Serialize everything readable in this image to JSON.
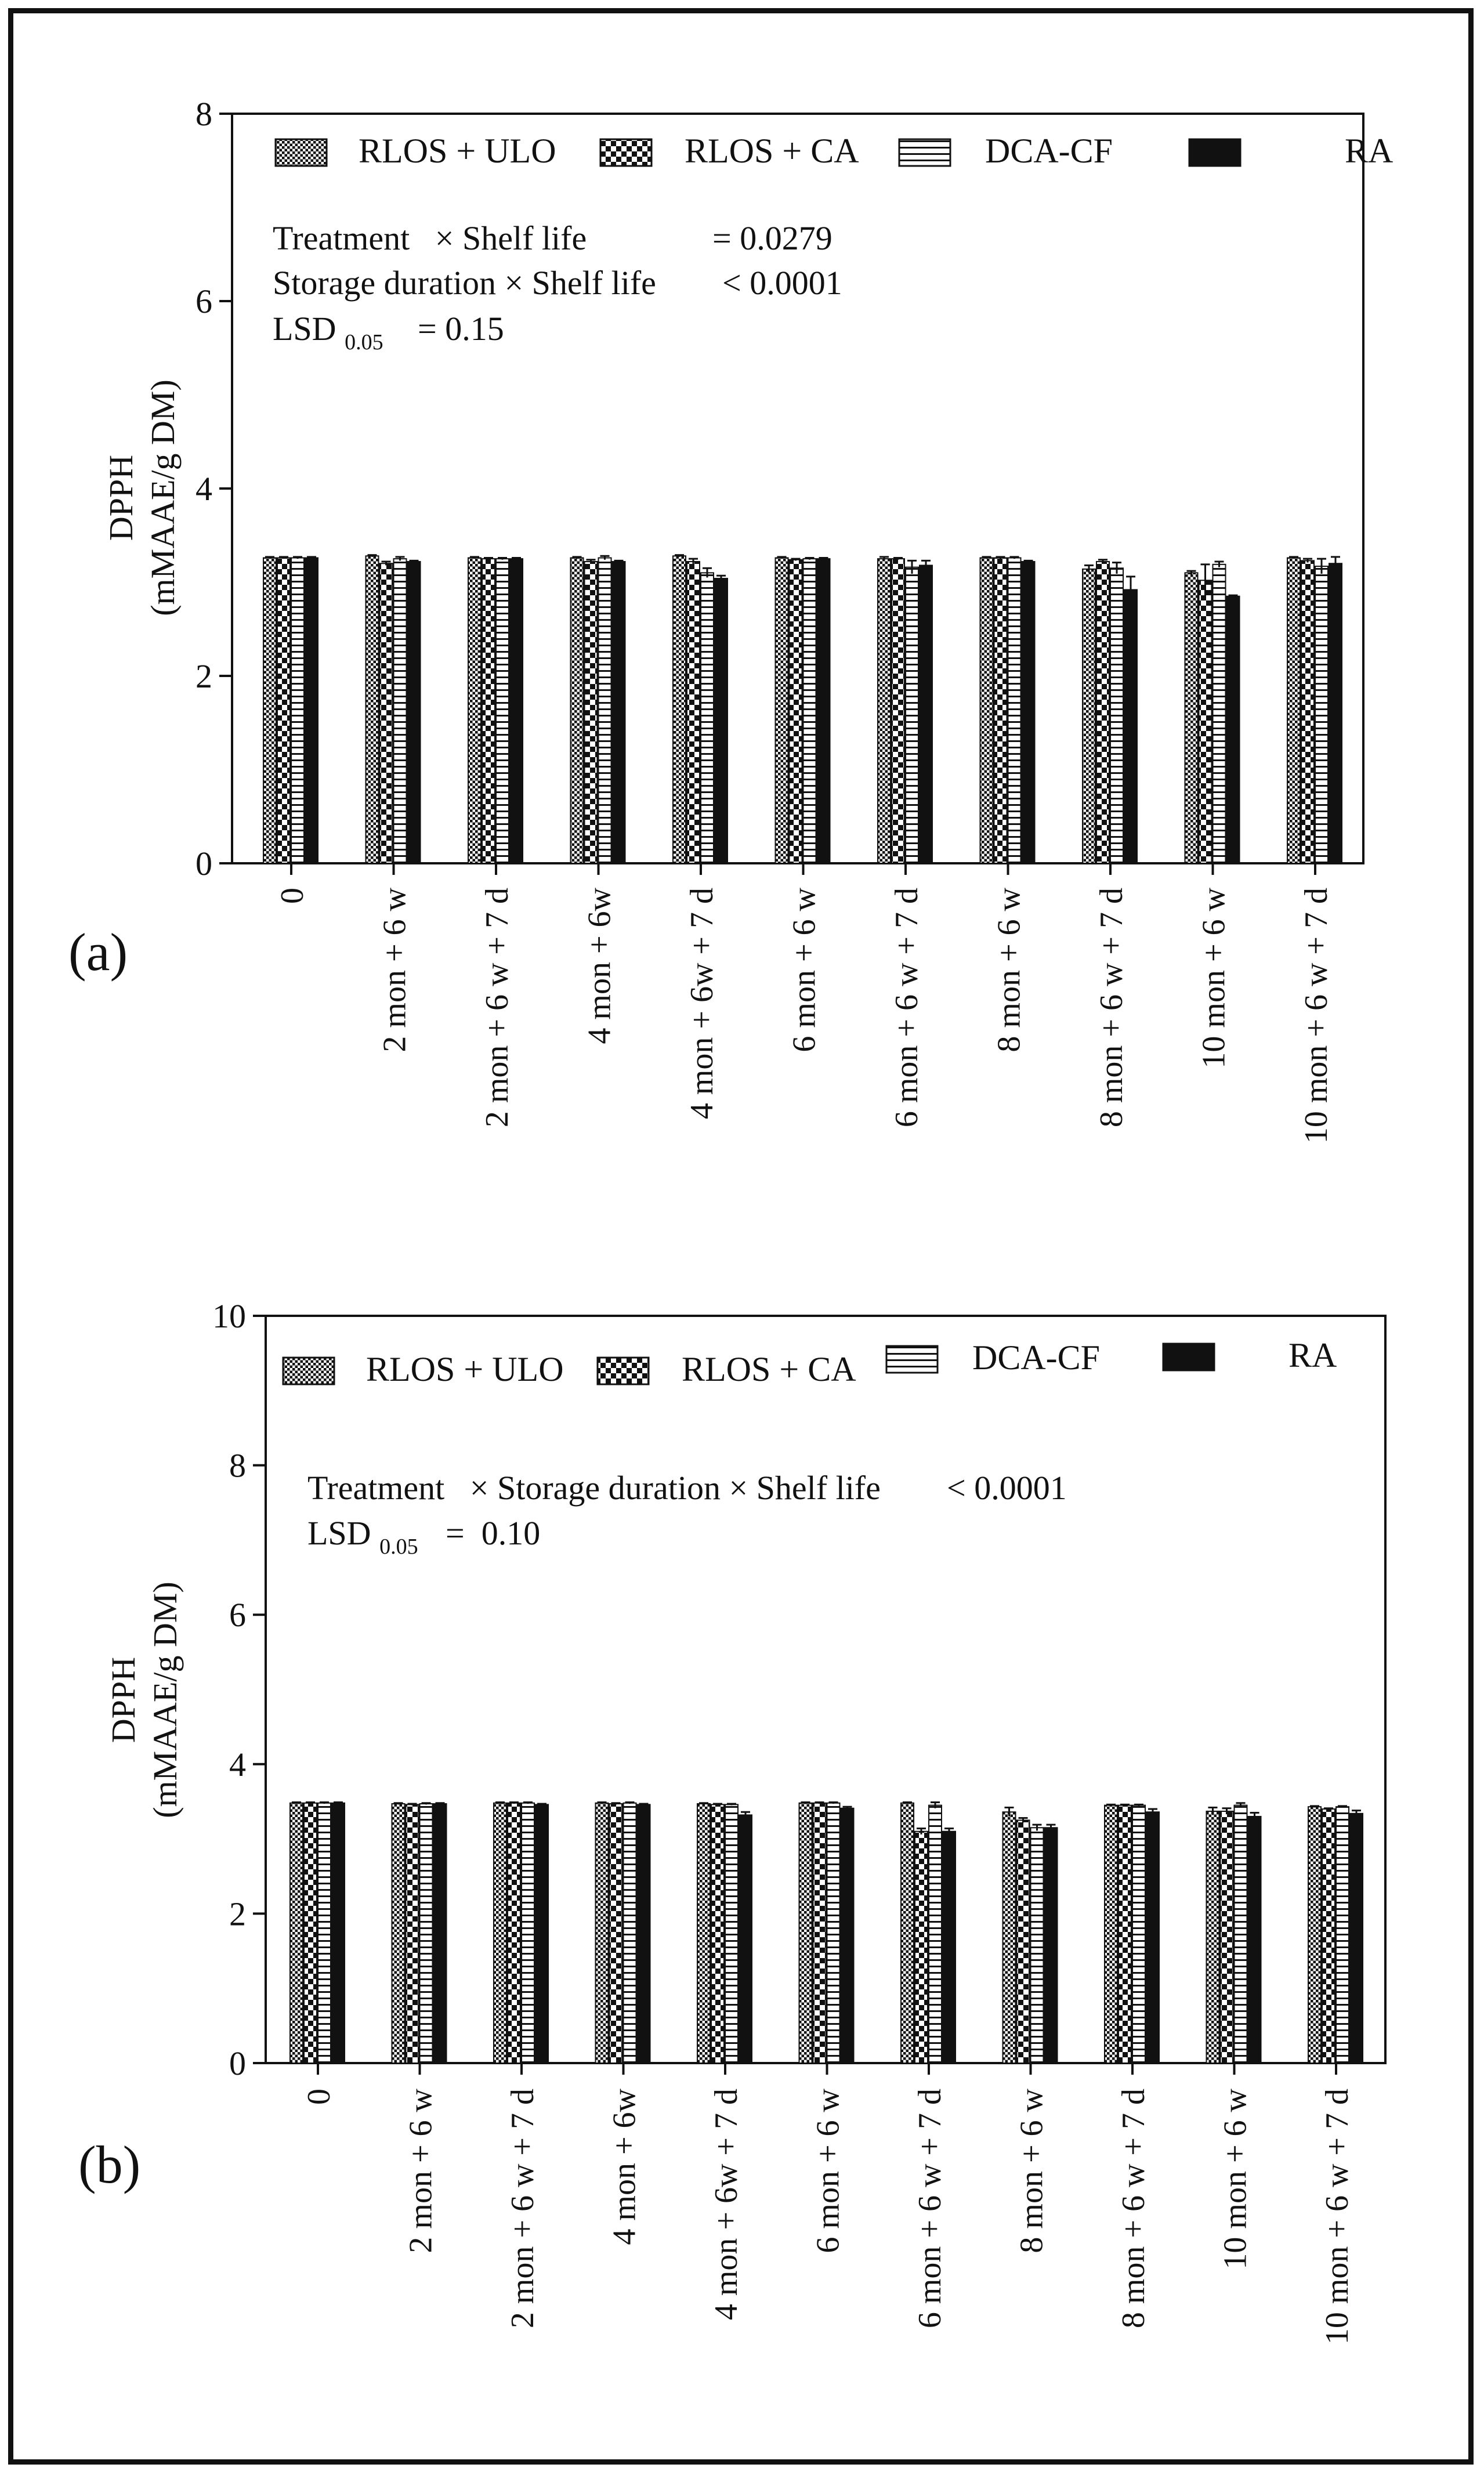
{
  "chart_data": [
    {
      "panel_label": "(a)",
      "type": "bar",
      "ylabel_line1": "DPPH",
      "ylabel_line2": "(mMAAE/g DM)",
      "ylim": [
        0,
        8
      ],
      "yticks": [
        "0",
        "2",
        "4",
        "6",
        "8"
      ],
      "categories": [
        "0",
        "2 mon + 6 w",
        "2 mon + 6 w + 7 d",
        "4 mon + 6w",
        "4 mon + 6w + 7 d",
        "6 mon + 6 w",
        "6 mon + 6 w + 7 d",
        "8 mon + 6 w",
        "8 mon + 6 w + 7 d",
        "10 mon + 6 w",
        "10 mon + 6 w + 7 d"
      ],
      "series": [
        {
          "name": "RLOS + ULO",
          "pattern": "fine-check",
          "values": [
            3.26,
            3.28,
            3.26,
            3.26,
            3.28,
            3.26,
            3.25,
            3.26,
            3.14,
            3.1,
            3.26
          ],
          "errors": [
            0.01,
            0.01,
            0.01,
            0.01,
            0.01,
            0.01,
            0.02,
            0.01,
            0.04,
            0.02,
            0.01
          ]
        },
        {
          "name": "RLOS + CA",
          "pattern": "coarse-check",
          "values": [
            3.26,
            3.2,
            3.25,
            3.22,
            3.22,
            3.24,
            3.25,
            3.26,
            3.22,
            3.02,
            3.23
          ],
          "errors": [
            0.01,
            0.02,
            0.01,
            0.02,
            0.03,
            0.01,
            0.01,
            0.01,
            0.02,
            0.17,
            0.02
          ]
        },
        {
          "name": "DCA-CF",
          "pattern": "horizontal-lines",
          "values": [
            3.26,
            3.25,
            3.25,
            3.26,
            3.1,
            3.25,
            3.16,
            3.26,
            3.15,
            3.19,
            3.17
          ],
          "errors": [
            0.01,
            0.02,
            0.01,
            0.02,
            0.05,
            0.01,
            0.07,
            0.01,
            0.06,
            0.03,
            0.08
          ]
        },
        {
          "name": "RA",
          "pattern": "solid-black",
          "values": [
            3.26,
            3.22,
            3.25,
            3.22,
            3.04,
            3.25,
            3.18,
            3.22,
            2.92,
            2.85,
            3.2
          ],
          "errors": [
            0.01,
            0.01,
            0.01,
            0.01,
            0.03,
            0.01,
            0.05,
            0.01,
            0.14,
            0.01,
            0.07
          ]
        }
      ],
      "annotations": {
        "line1_label": "Treatment   × Shelf life",
        "line1_value": "= 0.0279",
        "line2_label": "Storage duration × Shelf life",
        "line2_value": "< 0.0001",
        "lsd_main": "LSD",
        "lsd_sub": "0.05",
        "lsd_value": "= 0.15"
      }
    },
    {
      "panel_label": "(b)",
      "type": "bar",
      "ylabel_line1": "DPPH",
      "ylabel_line2": "(mMAAE/g DM)",
      "ylim": [
        0,
        10
      ],
      "yticks": [
        "0",
        "2",
        "4",
        "6",
        "8",
        "10"
      ],
      "categories": [
        "0",
        "2 mon + 6 w",
        "2 mon + 6 w + 7 d",
        "4 mon + 6w",
        "4 mon + 6w + 7 d",
        "6 mon + 6 w",
        "6 mon + 6 w + 7 d",
        "8 mon + 6 w",
        "8 mon + 6 w + 7 d",
        "10 mon + 6 w",
        "10 mon + 6 w + 7 d"
      ],
      "series": [
        {
          "name": "RLOS + ULO",
          "pattern": "fine-check",
          "values": [
            3.48,
            3.47,
            3.48,
            3.48,
            3.47,
            3.48,
            3.48,
            3.36,
            3.45,
            3.37,
            3.43
          ],
          "errors": [
            0.01,
            0.01,
            0.01,
            0.01,
            0.01,
            0.01,
            0.01,
            0.06,
            0.01,
            0.05,
            0.01
          ]
        },
        {
          "name": "RLOS + CA",
          "pattern": "coarse-check",
          "values": [
            3.48,
            3.46,
            3.48,
            3.47,
            3.46,
            3.48,
            3.1,
            3.25,
            3.45,
            3.37,
            3.4
          ],
          "errors": [
            0.01,
            0.01,
            0.01,
            0.01,
            0.01,
            0.01,
            0.04,
            0.03,
            0.01,
            0.04,
            0.01
          ]
        },
        {
          "name": "DCA-CF",
          "pattern": "horizontal-lines",
          "values": [
            3.48,
            3.47,
            3.48,
            3.48,
            3.46,
            3.48,
            3.45,
            3.15,
            3.45,
            3.45,
            3.43
          ],
          "errors": [
            0.01,
            0.01,
            0.01,
            0.01,
            0.01,
            0.01,
            0.04,
            0.04,
            0.01,
            0.03,
            0.01
          ]
        },
        {
          "name": "RA",
          "pattern": "solid-black",
          "values": [
            3.48,
            3.47,
            3.46,
            3.46,
            3.32,
            3.41,
            3.1,
            3.15,
            3.36,
            3.3,
            3.34
          ],
          "errors": [
            0.01,
            0.01,
            0.01,
            0.01,
            0.04,
            0.02,
            0.04,
            0.04,
            0.04,
            0.05,
            0.04
          ]
        }
      ],
      "annotations": {
        "line1_label": "Treatment   × Storage duration × Shelf life",
        "line1_value": "< 0.0001",
        "lsd_main": "LSD",
        "lsd_sub": "0.05",
        "lsd_value": "=  0.10"
      }
    }
  ]
}
